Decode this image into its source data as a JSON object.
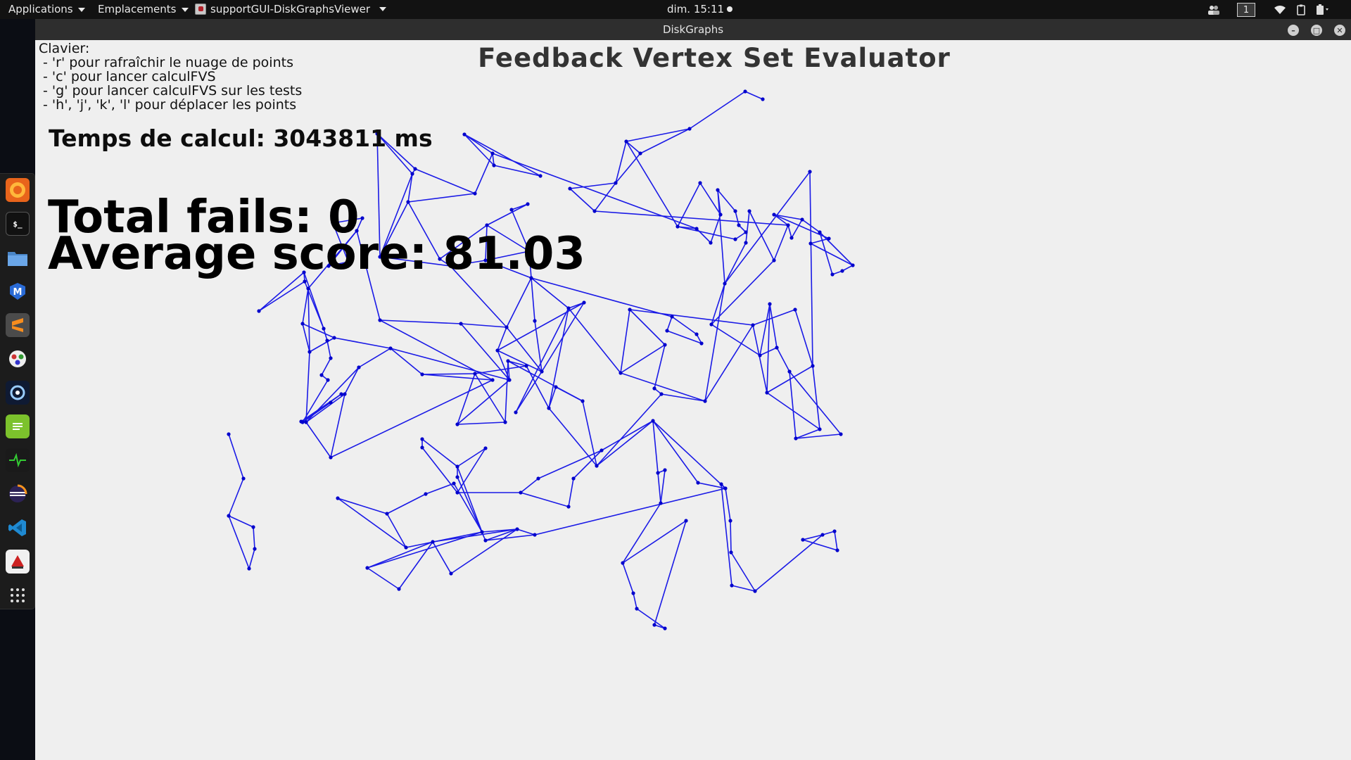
{
  "topbar": {
    "applications_label": "Applications",
    "places_label": "Emplacements",
    "app_label": "supportGUI-DiskGraphsViewer",
    "clock": "dim. 15:11",
    "workspace": "1"
  },
  "window": {
    "title": "DiskGraphs"
  },
  "help": {
    "heading": "Clavier:",
    "lines": [
      " - 'r' pour rafraîchir le nuage de points",
      " - 'c' pour lancer calculFVS",
      " - 'g' pour lancer calculFVS sur les tests",
      " - 'h', 'j', 'k', 'l' pour déplacer les points"
    ]
  },
  "app_title": "Feedback Vertex Set Evaluator",
  "stats": {
    "timing": "Temps de calcul: 3043811 ms",
    "fails": "Total fails: 0",
    "score": "Average score: 81.03"
  },
  "colors": {
    "edge": "#1a1ae6",
    "vertex": "#0000cc",
    "background": "#efefef"
  },
  "dock_icons": [
    "firefox-icon",
    "terminal-icon",
    "files-icon",
    "malwarebytes-icon",
    "sublime-icon",
    "gimp-icon",
    "inkscape-icon",
    "notes-icon",
    "system-monitor-icon",
    "eclipse-icon",
    "vscode-icon",
    "java-icon",
    "app-grid-icon"
  ]
}
